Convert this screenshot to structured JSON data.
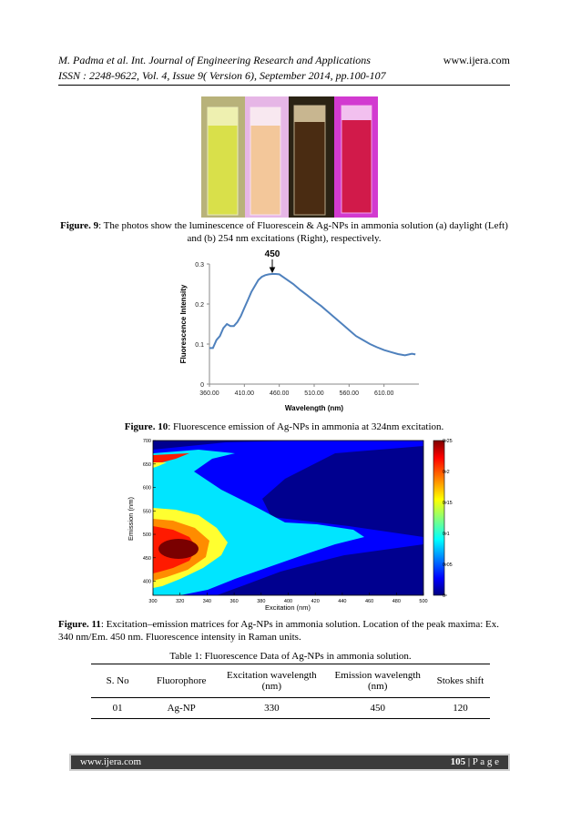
{
  "header": {
    "line1": "M. Padma et al. Int. Journal of Engineering Research and Applications",
    "website": "www.ijera.com",
    "line2": "ISSN : 2248-9622, Vol. 4, Issue 9( Version 6), September 2014, pp.100-107"
  },
  "fig9": {
    "label": "Figure. 9",
    "caption": ": The photos show the luminescence of Fluorescein & Ag-NPs in ammonia solution (a) daylight (Left) and (b) 254 nm excitations (Right), respectively."
  },
  "fig10": {
    "label": "Figure. 10",
    "caption": ": Fluorescence emission of Ag-NPs in ammonia at 324nm excitation.",
    "chart_data": {
      "type": "line",
      "xlabel": "Wavelength (nm)",
      "ylabel": "Fluorescence Intensity",
      "annotation": "450",
      "xlim": [
        360,
        660
      ],
      "ylim": [
        0,
        0.3
      ],
      "x_ticks": [
        "360.00",
        "410.00",
        "460.00",
        "510.00",
        "560.00",
        "610.00"
      ],
      "y_ticks": [
        "0",
        "0.1",
        "0.2",
        "0.3"
      ],
      "line_color": "#4f81bd",
      "x": [
        360,
        365,
        370,
        375,
        380,
        385,
        390,
        395,
        400,
        405,
        410,
        415,
        420,
        425,
        430,
        435,
        440,
        445,
        450,
        455,
        460,
        470,
        480,
        490,
        500,
        510,
        520,
        530,
        540,
        550,
        560,
        570,
        580,
        590,
        600,
        610,
        620,
        630,
        640,
        650,
        655
      ],
      "y": [
        0.09,
        0.09,
        0.11,
        0.12,
        0.14,
        0.15,
        0.145,
        0.145,
        0.155,
        0.17,
        0.19,
        0.21,
        0.23,
        0.245,
        0.26,
        0.268,
        0.272,
        0.274,
        0.275,
        0.275,
        0.274,
        0.262,
        0.25,
        0.235,
        0.222,
        0.208,
        0.195,
        0.18,
        0.165,
        0.15,
        0.135,
        0.12,
        0.11,
        0.1,
        0.092,
        0.085,
        0.08,
        0.075,
        0.072,
        0.076,
        0.074
      ]
    }
  },
  "fig11": {
    "label": "Figure. 11",
    "caption": ": Excitation–emission matrices for Ag-NPs in ammonia solution. Location of the peak maxima: Ex. 340 nm/Em. 450 nm. Fluorescence intensity in Raman units.",
    "chart_data": {
      "type": "heatmap",
      "xlabel": "Excitation (nm)",
      "ylabel": "Emission (nm)",
      "xlim": [
        300,
        500
      ],
      "ylim": [
        370,
        700
      ],
      "x_ticks": [
        "300",
        "320",
        "340",
        "360",
        "380",
        "400",
        "420",
        "440",
        "460",
        "480",
        "500"
      ],
      "y_ticks": [
        "400",
        "450",
        "500",
        "550",
        "600",
        "650",
        "700"
      ],
      "colorbar_ticks": [
        "0",
        "0.05",
        "0.1",
        "0.15",
        "0.2",
        "0.25"
      ],
      "clim": [
        0,
        0.25
      ],
      "peak": {
        "excitation": 340,
        "emission": 450
      }
    }
  },
  "table1": {
    "title_label": "Table 1",
    "title_text": ": Fluorescence Data of Ag-NPs in ammonia solution.",
    "headers": [
      "S. No",
      "Fluorophore",
      "Excitation wavelength (nm)",
      "Emission wavelength (nm)",
      "Stokes shift"
    ],
    "rows": [
      [
        "01",
        "Ag-NP",
        "330",
        "450",
        "120"
      ]
    ]
  },
  "footer": {
    "website": "www.ijera.com",
    "page_num": "105",
    "page_label": " | P a g e"
  }
}
